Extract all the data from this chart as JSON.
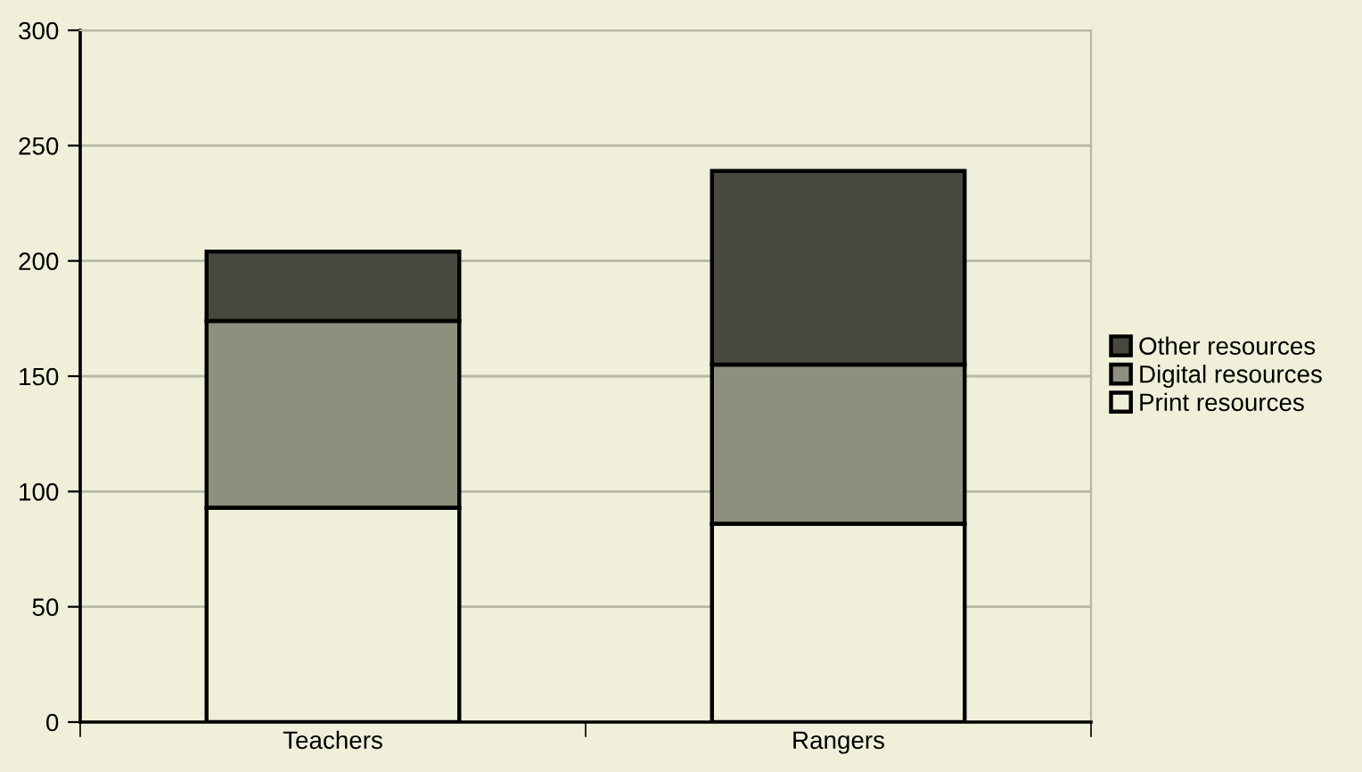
{
  "chart_data": {
    "type": "bar",
    "stacked": true,
    "categories": [
      "Teachers",
      "Rangers"
    ],
    "series": [
      {
        "name": "Print resources",
        "color": "#f0efd9",
        "values": [
          93,
          86
        ]
      },
      {
        "name": "Digital resources",
        "color": "#8f8f80",
        "values": [
          81,
          69
        ]
      },
      {
        "name": "Other resources",
        "color": "#48483f",
        "values": [
          30,
          84
        ]
      }
    ],
    "ylim": [
      0,
      300
    ],
    "yticks": [
      0,
      50,
      100,
      150,
      200,
      250,
      300
    ],
    "grid": "y",
    "legend": "right"
  }
}
